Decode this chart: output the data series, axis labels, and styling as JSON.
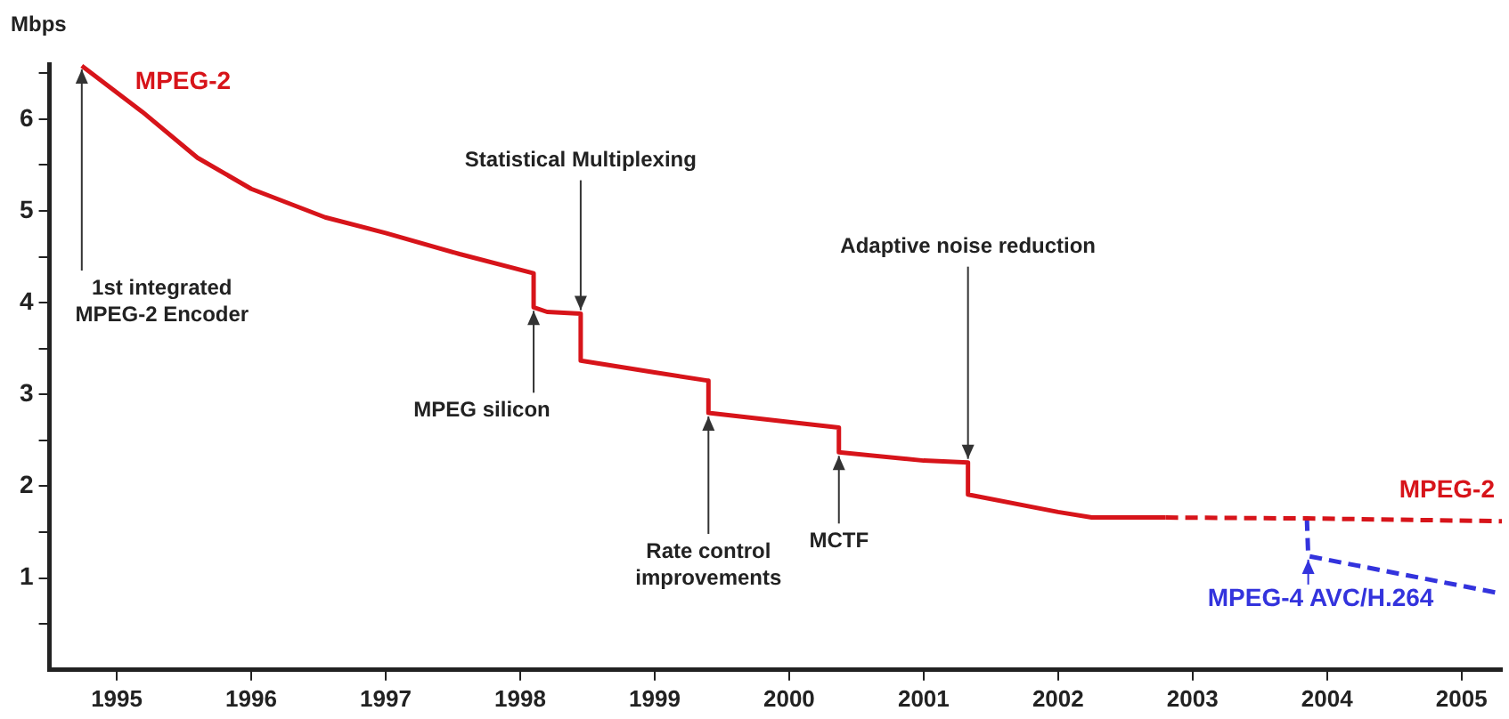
{
  "chart_data": {
    "type": "line",
    "ylabel": "Mbps",
    "xlim": [
      1994.5,
      2005.3
    ],
    "xticks": [
      1995,
      1996,
      1997,
      1998,
      1999,
      2000,
      2001,
      2002,
      2003,
      2004,
      2005
    ],
    "ylim": [
      0,
      6.6
    ],
    "yticks": [
      {
        "value": 0.5,
        "label": null
      },
      1,
      {
        "value": 1.5,
        "label": null
      },
      2,
      {
        "value": 2.5,
        "label": null
      },
      3,
      {
        "value": 3.5,
        "label": null
      },
      4,
      {
        "value": 4.5,
        "label": null
      },
      5,
      {
        "value": 5.5,
        "label": null
      },
      6,
      {
        "value": 6.5,
        "label": null
      }
    ],
    "grid": false,
    "marker": "none",
    "series": [
      {
        "name": "MPEG-2",
        "color": "#d7141a",
        "line_style": "solid",
        "x": [
          1994.74,
          1995.19,
          1995.6,
          1996,
          1996.55,
          1997,
          1997.55,
          1998.1,
          1998.1,
          1998.2,
          1998.45,
          1998.45,
          1999,
          1999.4,
          1999.4,
          2000,
          2000.37,
          2000.37,
          2001,
          2001.33,
          2001.33,
          2002,
          2002.25,
          2002.8
        ],
        "values": [
          6.58,
          6.08,
          5.58,
          5.24,
          4.93,
          4.76,
          4.53,
          4.32,
          3.95,
          3.9,
          3.88,
          3.37,
          3.24,
          3.15,
          2.8,
          2.7,
          2.64,
          2.37,
          2.28,
          2.26,
          1.91,
          1.72,
          1.66,
          1.66
        ]
      },
      {
        "name": "MPEG-2",
        "color": "#d7141a",
        "line_style": "dashed",
        "x": [
          2002.8,
          2003.85,
          2005.3
        ],
        "values": [
          1.66,
          1.65,
          1.62
        ]
      },
      {
        "name": "MPEG-4 AVC/H.264",
        "color": "#3333dd",
        "line_style": "dashed",
        "x": [
          2003.85,
          2003.86,
          2005.3
        ],
        "values": [
          1.65,
          1.24,
          0.83
        ]
      }
    ],
    "annotations": [
      {
        "text": "1st integrated\nMPEG-2 Encoder",
        "x": 1994.74,
        "y": 6.58
      },
      {
        "text": "Statistical Multiplexing",
        "x": 1998.45,
        "y": 3.88
      },
      {
        "text": "MPEG silicon",
        "x": 1998.1,
        "y": 3.95
      },
      {
        "text": "Rate control\nimprovements",
        "x": 1999.4,
        "y": 2.8
      },
      {
        "text": "MCTF",
        "x": 2000.37,
        "y": 2.37
      },
      {
        "text": "Adaptive noise reduction",
        "x": 2001.33,
        "y": 2.26
      }
    ]
  }
}
